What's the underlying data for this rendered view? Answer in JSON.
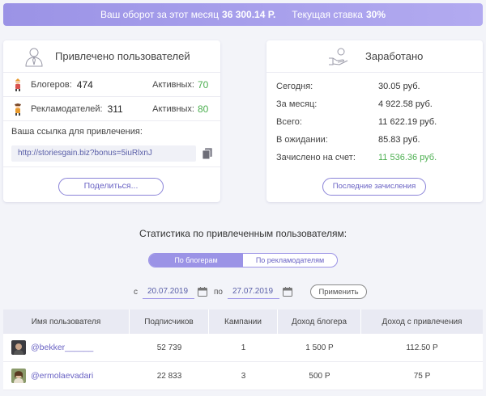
{
  "banner": {
    "turnover_label": "Ваш оборот за этот месяц",
    "turnover_value": "36 300.14 Р.",
    "rate_label": "Текущая ставка",
    "rate_value": "30%"
  },
  "referrals": {
    "title": "Привлечено пользователей",
    "bloggers_label": "Блогеров:",
    "bloggers_count": "474",
    "bloggers_active_label": "Активных:",
    "bloggers_active": "70",
    "advertisers_label": "Рекламодателей:",
    "advertisers_count": "311",
    "advertisers_active_label": "Активных:",
    "advertisers_active": "80",
    "link_title": "Ваша ссылка для привлечения:",
    "link_value": "http://storiesgain.biz?bonus=5iuRlxnJ",
    "share_label": "Поделиться..."
  },
  "earnings": {
    "title": "Заработано",
    "rows": [
      {
        "label": "Сегодня:",
        "value": "30.05 руб."
      },
      {
        "label": "За месяц:",
        "value": "4 922.58 руб."
      },
      {
        "label": "Всего:",
        "value": "11 622.19 руб."
      },
      {
        "label": "В ожидании:",
        "value": "85.83 руб."
      },
      {
        "label": "Зачислено на счет:",
        "value": "11 536.36 руб."
      }
    ],
    "last_button": "Последние зачисления"
  },
  "stats": {
    "title": "Статистика по привлеченным пользователям:",
    "tab_bloggers": "По блогерам",
    "tab_advertisers": "По рекламодателям",
    "from_label": "с",
    "from_date": "20.07.2019",
    "to_label": "по",
    "to_date": "27.07.2019",
    "apply_label": "Применить"
  },
  "table": {
    "headers": [
      "Имя пользователя",
      "Подписчиков",
      "Кампании",
      "Доход блогера",
      "Доход с привлечения"
    ],
    "rows": [
      {
        "user": "@bekker______",
        "subscribers": "52 739",
        "campaigns": "1",
        "blogger_income": "1 500 Р",
        "ref_income": "112.50 Р"
      },
      {
        "user": "@ermolaevadari",
        "subscribers": "22 833",
        "campaigns": "3",
        "blogger_income": "500 Р",
        "ref_income": "75 Р"
      }
    ]
  },
  "colors": {
    "accent": "#9b93e6",
    "green": "#4caf50",
    "link": "#6a63c4"
  }
}
